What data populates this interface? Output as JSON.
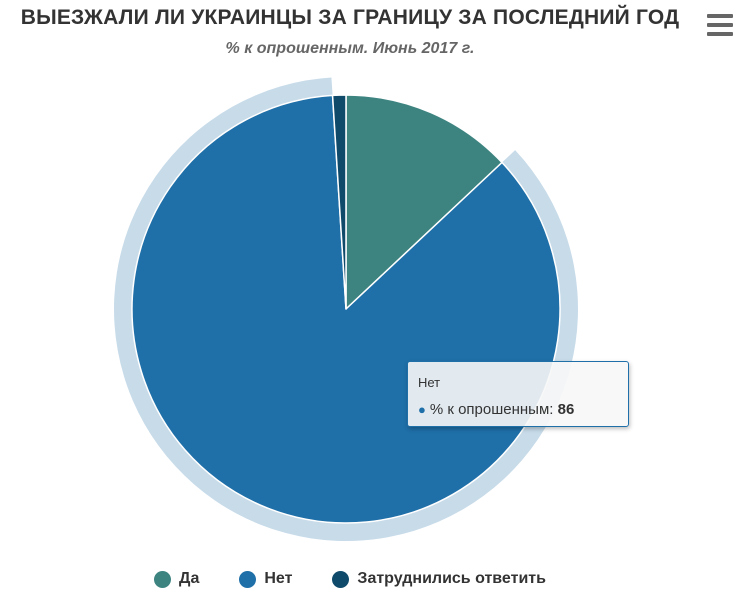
{
  "chart_data": {
    "type": "pie",
    "title": "ВЫЕЗЖАЛИ ЛИ УКРАИНЦЫ ЗА ГРАНИЦУ ЗА ПОСЛЕДНИЙ ГОД",
    "subtitle": "% к опрошенным. Июнь 2017 г.",
    "series_name": "% к опрошенным",
    "categories": [
      "Да",
      "Нет",
      "Затруднились ответить"
    ],
    "values": [
      13,
      86,
      1
    ],
    "colors": [
      "#3d8481",
      "#1f6fa8",
      "#0f4a6b"
    ],
    "highlighted": "Нет",
    "legend": "bottom"
  },
  "tooltip": {
    "title": "Нет",
    "label": "% к опрошенным:",
    "value": "86",
    "dot": "●"
  },
  "menu": {
    "icon": "hamburger-icon"
  }
}
